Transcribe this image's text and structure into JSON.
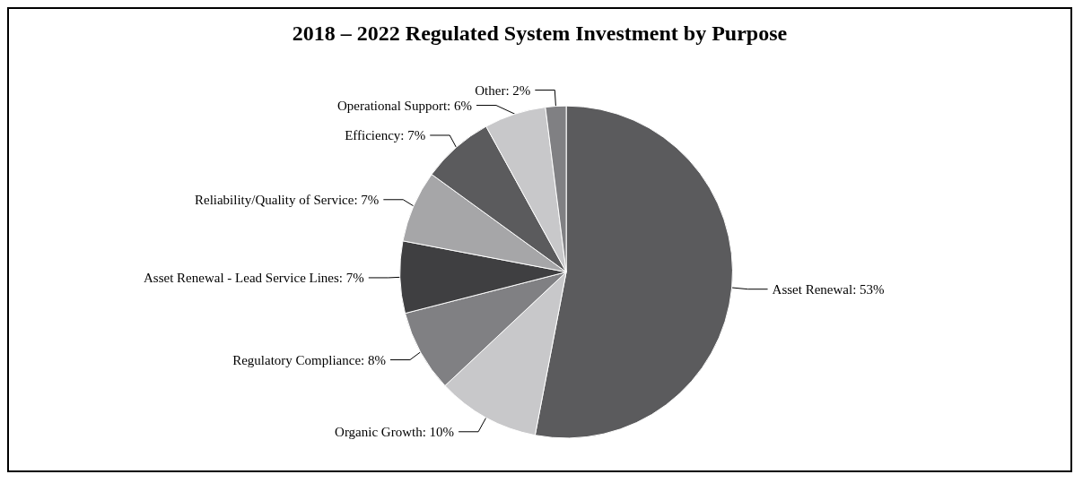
{
  "chart_data": {
    "type": "pie",
    "title": "2018 – 2022 Regulated System Investment by Purpose",
    "categories": [
      "Asset Renewal",
      "Organic Growth",
      "Regulatory Compliance",
      "Asset Renewal - Lead Service Lines",
      "Reliability/Quality of Service",
      "Efficiency",
      "Operational Support",
      "Other"
    ],
    "values": [
      53,
      10,
      8,
      7,
      7,
      7,
      6,
      2
    ],
    "value_labels": [
      "53%",
      "10%",
      "8%",
      "7%",
      "7%",
      "7%",
      "6%",
      "2%"
    ],
    "colors": [
      "#5b5b5d",
      "#c8c8ca",
      "#808083",
      "#3f3f41",
      "#a6a6a8",
      "#5b5b5d",
      "#c8c8ca",
      "#808083"
    ],
    "legend": false
  }
}
